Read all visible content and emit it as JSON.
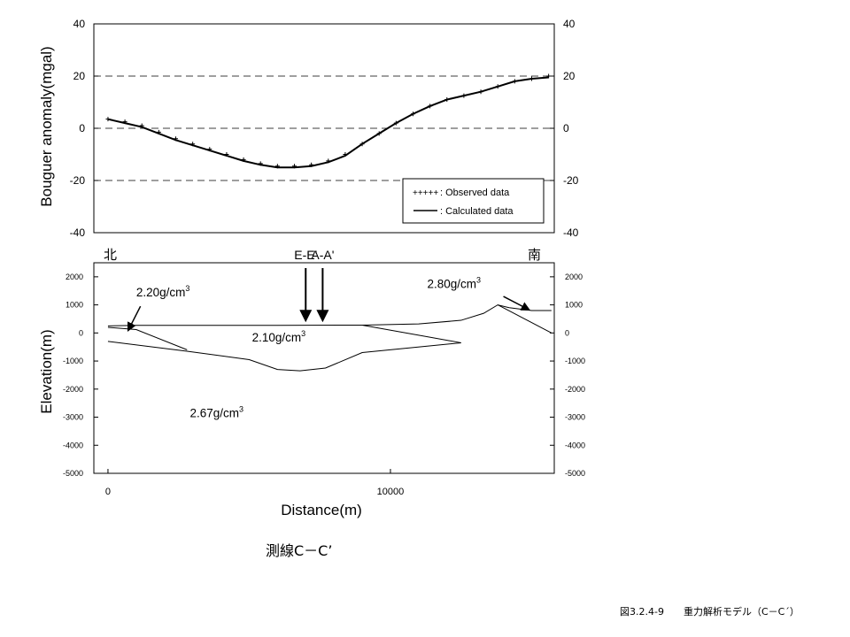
{
  "chart_data": [
    {
      "type": "line",
      "ylabel": "Bouguer anomaly(mgal)",
      "ylim": [
        -40,
        40
      ],
      "xlim": [
        -500,
        15800
      ],
      "y_ticks_left": [
        "40",
        "20",
        "0",
        "-20",
        "-40"
      ],
      "y_ticks_right": [
        "40",
        "20",
        "0",
        "-20",
        "-40"
      ],
      "y_tick_values": [
        40,
        20,
        0,
        -20,
        -40
      ],
      "dashed_gridlines_at": [
        20,
        0,
        -20
      ],
      "legend_position": "bottom-right",
      "legend": [
        {
          "marker": "+++++",
          "label": ": Observed data"
        },
        {
          "marker": "line",
          "label": ": Calculated data"
        }
      ],
      "series": [
        {
          "name": "Observed data",
          "style": "plus-markers",
          "x": [
            0,
            600,
            1200,
            1800,
            2400,
            3000,
            3600,
            4200,
            4800,
            5400,
            6000,
            6600,
            7200,
            7800,
            8400,
            9000,
            9600,
            10200,
            10800,
            11400,
            12000,
            12600,
            13200,
            13800,
            14400,
            15000,
            15600
          ],
          "y": [
            3.5,
            2.5,
            1,
            -1.5,
            -4,
            -6,
            -8,
            -10,
            -12,
            -13.5,
            -14.5,
            -14.5,
            -14,
            -12.5,
            -10,
            -6,
            -2,
            2,
            5.5,
            8.5,
            11,
            12.5,
            14,
            16,
            18,
            19,
            20
          ]
        },
        {
          "name": "Calculated data",
          "style": "solid",
          "x": [
            0,
            600,
            1200,
            1800,
            2400,
            3000,
            3600,
            4200,
            4800,
            5400,
            6000,
            6600,
            7200,
            7800,
            8400,
            9000,
            9600,
            10200,
            10800,
            11400,
            12000,
            12600,
            13200,
            13800,
            14400,
            15000,
            15600
          ],
          "y": [
            3.5,
            2,
            0.5,
            -2,
            -4.5,
            -6.5,
            -8.5,
            -10.5,
            -12.5,
            -14,
            -15,
            -15,
            -14.5,
            -13,
            -10.5,
            -6,
            -2,
            2,
            5.5,
            8.5,
            11,
            12.5,
            14,
            16,
            18,
            19,
            19.5
          ]
        }
      ]
    },
    {
      "type": "line",
      "subtype": "cross-section",
      "xlabel": "Distance(m)",
      "ylabel": "Elevation(m)",
      "xlim": [
        -500,
        15800
      ],
      "ylim": [
        -5000,
        2500
      ],
      "x_ticks": [
        "0",
        "10000"
      ],
      "x_tick_values": [
        0,
        10000
      ],
      "y_ticks_left": [
        "2000",
        "1000",
        "0",
        "-1000",
        "-2000",
        "-3000",
        "-4000",
        "-5000"
      ],
      "y_ticks_right": [
        "2000",
        "1000",
        "0",
        "-1000",
        "-2000",
        "-3000",
        "-4000",
        "-5000"
      ],
      "y_tick_values": [
        2000,
        1000,
        0,
        -1000,
        -2000,
        -3000,
        -4000,
        -5000
      ],
      "direction_labels": {
        "left": "北",
        "right": "南"
      },
      "section_markers": [
        {
          "label": "E-E'",
          "x": 7000
        },
        {
          "label": "A-A'",
          "x": 7600
        }
      ],
      "boundaries": [
        {
          "name": "topography",
          "x": [
            0,
            1000,
            3000,
            6000,
            9000,
            11000,
            12500,
            13300,
            13800,
            14200,
            15000,
            15700
          ],
          "y": [
            250,
            270,
            270,
            270,
            280,
            320,
            450,
            700,
            1000,
            900,
            800,
            800
          ]
        },
        {
          "name": "block-2.20-base",
          "x": [
            0,
            1000,
            2800
          ],
          "y": [
            200,
            120,
            -600
          ]
        },
        {
          "name": "basin-base",
          "x": [
            0,
            2800,
            5000,
            6000,
            6800,
            7700,
            9000,
            12500
          ],
          "y": [
            -300,
            -650,
            -950,
            -1300,
            -1350,
            -1250,
            -700,
            -350
          ]
        },
        {
          "name": "block-2.10-lower-edge",
          "x": [
            9000,
            12500
          ],
          "y": [
            280,
            -350
          ]
        },
        {
          "name": "block-2.80-base",
          "x": [
            13800,
            15700
          ],
          "y": [
            1000,
            0
          ]
        }
      ],
      "density_labels": [
        {
          "text": "2.20g/cm",
          "sup": "3",
          "x": 1000,
          "y": 1300
        },
        {
          "text": "2.10g/cm",
          "sup": "3",
          "x": 5100,
          "y": -300
        },
        {
          "text": "2.67g/cm",
          "sup": "3",
          "x": 2900,
          "y": -3000
        },
        {
          "text": "2.80g/cm",
          "sup": "3",
          "x": 11300,
          "y": 1600
        }
      ]
    }
  ],
  "caption": "測線C－C’",
  "figure_caption": "図3.2.4-9　　重力解析モデル（C－C´）"
}
